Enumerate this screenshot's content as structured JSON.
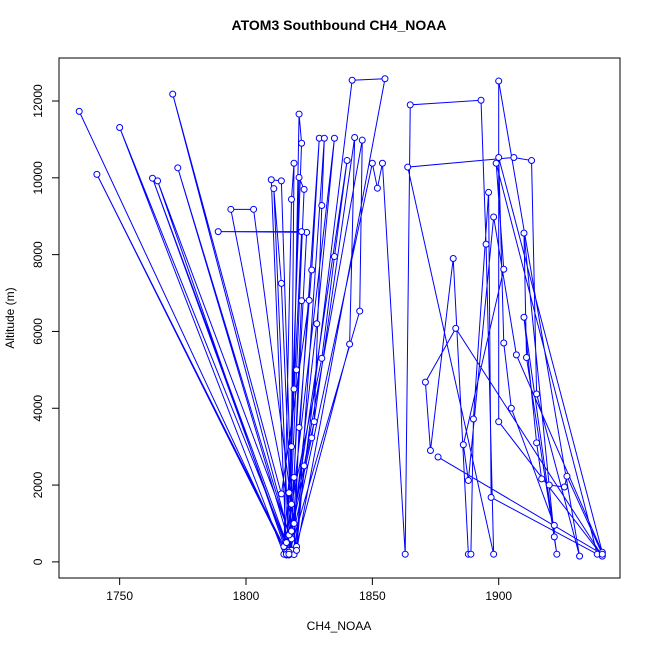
{
  "chart_data": {
    "type": "line",
    "title": "ATOM3 Southbound CH4_NOAA",
    "x_label": "CH4_NOAA",
    "y_label": "Altitude (m)",
    "xlim": [
      1726,
      1948
    ],
    "ylim": [
      -420,
      13120
    ],
    "xticks": [
      1750,
      1800,
      1850,
      1900
    ],
    "yticks": [
      0,
      2000,
      4000,
      6000,
      8000,
      10000,
      12000
    ],
    "markers": true,
    "x": [
      1734,
      1816,
      1817,
      1819,
      1821,
      1822,
      1816,
      1741,
      1815,
      1818,
      1819,
      1818,
      1815,
      1750,
      1817,
      1820,
      1823,
      1821,
      1817,
      1763,
      1816,
      1819,
      1824,
      1789,
      1822,
      1816,
      1765,
      1818,
      1822,
      1825,
      1814,
      1771,
      1819,
      1821,
      1826,
      1829,
      1818,
      1773,
      1817,
      1827,
      1830,
      1831,
      1820,
      1794,
      1803,
      1819,
      1828,
      1835,
      1816,
      1810,
      1814,
      1818,
      1830,
      1835,
      1840,
      1817,
      1811,
      1814,
      1818,
      1826,
      1843,
      1841,
      1819,
      1842,
      1855,
      1820,
      1823,
      1846,
      1845,
      1817,
      1850,
      1852,
      1854,
      1863,
      1865,
      1893,
      1895,
      1898,
      1864,
      1906,
      1913,
      1915,
      1932,
      1900,
      1900,
      1941,
      1883,
      1871,
      1873,
      1882,
      1888,
      1889,
      1890,
      1896,
      1897,
      1939,
      1899,
      1902,
      1886,
      1888,
      1898,
      1907,
      1941,
      1900,
      1902,
      1905,
      1922,
      1922,
      1910,
      1911,
      1923,
      1910,
      1915,
      1917,
      1920,
      1926,
      1927,
      1941,
      1876
    ],
    "series": [
      {
        "name": "CH4_NOAA",
        "color": "#0000ff",
        "values": [
          11730,
          180,
          1800,
          4500,
          11660,
          10900,
          200,
          10090,
          400,
          3000,
          10380,
          9440,
          200,
          11310,
          300,
          5000,
          9700,
          10010,
          180,
          9990,
          500,
          2200,
          8580,
          8600,
          8600,
          250,
          9920,
          600,
          6800,
          6810,
          1770,
          12180,
          200,
          3500,
          7600,
          11030,
          300,
          10260,
          700,
          3650,
          9280,
          11030,
          400,
          9180,
          9180,
          1000,
          6200,
          11030,
          200,
          9950,
          9920,
          1500,
          5300,
          7950,
          10450,
          250,
          9720,
          7250,
          800,
          3230,
          11050,
          5670,
          190,
          12540,
          12580,
          300,
          2500,
          10980,
          6530,
          200,
          10380,
          9730,
          10380,
          200,
          11900,
          12020,
          8270,
          200,
          10280,
          10530,
          10450,
          4370,
          150,
          12520,
          3650,
          150,
          6080,
          4680,
          2900,
          7900,
          200,
          200,
          3720,
          9620,
          1680,
          200,
          10380,
          7620,
          3050,
          2120,
          8980,
          5390,
          250,
          10530,
          5700,
          4000,
          950,
          650,
          8560,
          5320,
          200,
          6370,
          3100,
          2160,
          2000,
          1950,
          2230,
          200,
          2730
        ]
      }
    ]
  }
}
